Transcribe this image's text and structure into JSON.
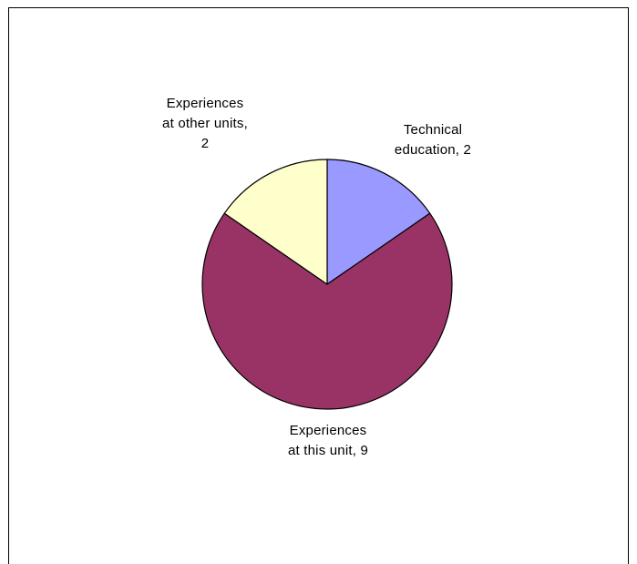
{
  "chart_data": {
    "type": "pie",
    "slices": [
      {
        "label": "Technical education",
        "value": 2,
        "color": "#9999ff",
        "display": "Technical\neducation, 2"
      },
      {
        "label": "Experiences at this unit",
        "value": 9,
        "color": "#993366",
        "display": "Experiences\nat this unit, 9"
      },
      {
        "label": "Experiences at other units",
        "value": 2,
        "color": "#ffffcc",
        "display": "Experiences\nat other units,\n2"
      }
    ],
    "start_angle_deg": 0,
    "direction": "clockwise",
    "legend": "none"
  }
}
